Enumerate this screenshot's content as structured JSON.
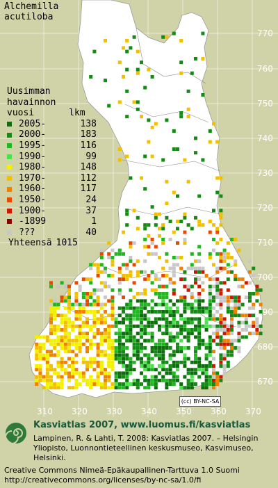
{
  "species": {
    "line1": "Alchemilla",
    "line2": "acutiloba"
  },
  "legend": {
    "heading": [
      "Uusimman",
      "havainnon",
      "vuosi"
    ],
    "count_header": "lkm",
    "rows": [
      {
        "period": "2005-",
        "count": "138",
        "color": "#0e6e0e"
      },
      {
        "period": "2000-",
        "count": "183",
        "color": "#168a16"
      },
      {
        "period": "1995-",
        "count": "116",
        "color": "#22b622"
      },
      {
        "period": "1990-",
        "count": "99",
        "color": "#4ee04e"
      },
      {
        "period": "1980-",
        "count": "148",
        "color": "#f2f200"
      },
      {
        "period": "1970-",
        "count": "112",
        "color": "#f2c000"
      },
      {
        "period": "1960-",
        "count": "117",
        "color": "#f08000"
      },
      {
        "period": "1950-",
        "count": "24",
        "color": "#e84800"
      },
      {
        "period": "1900-",
        "count": "37",
        "color": "#cc1800"
      },
      {
        "period": "-1899",
        "count": "1",
        "color": "#8c0000"
      },
      {
        "period": "???",
        "count": "40",
        "color": "#c8c8c8"
      }
    ],
    "total_label": "Yhteensä",
    "total_count": "1015"
  },
  "axes": {
    "y_labels": [
      "770",
      "760",
      "750",
      "740",
      "730",
      "720",
      "710",
      "700",
      "690",
      "680",
      "670"
    ],
    "x_labels": [
      "310",
      "320",
      "330",
      "340",
      "350",
      "360",
      "370"
    ]
  },
  "badge": "BY-NC-SA",
  "footer": {
    "site": "Kasviatlas 2007, www.luomus.fi/kasviatlas",
    "citation": "Lampinen, R. & Lahti, T. 2008: Kasviatlas 2007. – Helsingin Yliopisto, Luonnontieteellinen keskusmuseo, Kasvimuseo, Helsinki.",
    "license_line1": "Creative Commons Nimeä-Epäkaupallinen-Tarttuva 1.0 Suomi",
    "license_line2": "http://creativecommons.org/licenses/by-nc-sa/1.0/fi"
  },
  "colors": {
    "land": "#ffffff",
    "sea": "#cfd3a7",
    "grid_text": "#ffffff",
    "site_text": "#1a5a3a"
  }
}
